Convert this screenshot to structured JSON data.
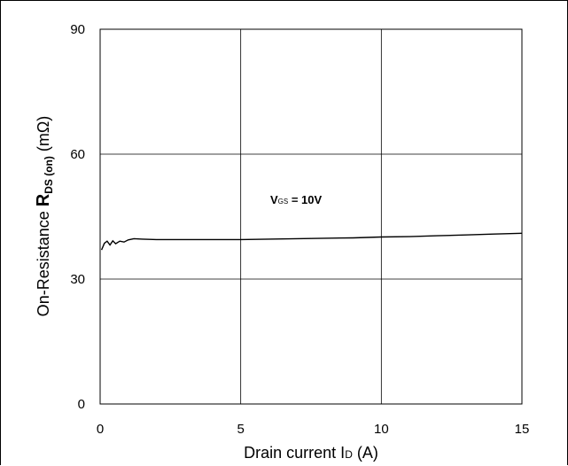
{
  "chart_data": {
    "type": "line",
    "xlabel": {
      "prefix": "Drain current I",
      "sub": "D",
      "suffix": " (A)"
    },
    "ylabel": {
      "prefix": "On-Resistance  ",
      "bold": "R",
      "sub": "DS (on)",
      "suffix": " (mΩ)"
    },
    "xlim": [
      0,
      15
    ],
    "ylim": [
      0,
      90
    ],
    "xticks": [
      "0",
      "5",
      "10",
      "15"
    ],
    "yticks": [
      "0",
      "30",
      "60",
      "90"
    ],
    "grid": true,
    "annotation": {
      "v": "V",
      "sub": "GS",
      "text": " = 10V"
    },
    "series": [
      {
        "x": [
          0.05,
          0.15,
          0.25,
          0.35,
          0.45,
          0.55,
          0.7,
          0.85,
          1.0,
          1.2,
          1.5,
          2,
          3,
          4,
          5,
          6,
          7,
          8,
          9,
          10,
          11,
          12,
          13,
          14,
          15
        ],
        "y": [
          37.0,
          38.6,
          39.1,
          38.2,
          39.2,
          38.5,
          39.1,
          38.9,
          39.4,
          39.7,
          39.6,
          39.5,
          39.5,
          39.5,
          39.5,
          39.6,
          39.7,
          39.8,
          39.9,
          40.1,
          40.2,
          40.4,
          40.6,
          40.8,
          41.0
        ]
      }
    ]
  }
}
